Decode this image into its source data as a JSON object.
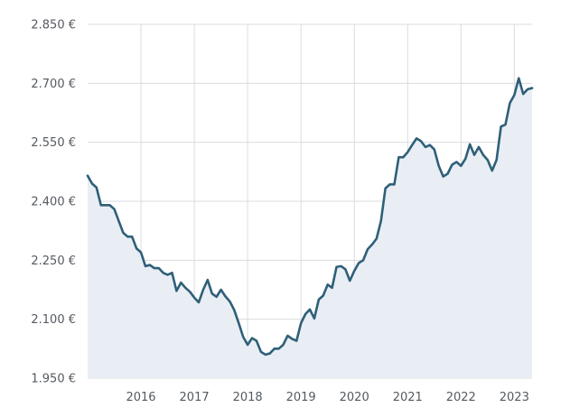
{
  "chart_data": {
    "type": "area",
    "title": "",
    "xlabel": "",
    "ylabel": "",
    "grid": true,
    "legend": "none",
    "ylim": [
      1950,
      2850
    ],
    "xlim": [
      "2015-01",
      "2023-05"
    ],
    "y_ticks": [
      1950,
      2100,
      2250,
      2400,
      2550,
      2700,
      2850
    ],
    "y_tick_labels": [
      "1.950 €",
      "2.100 €",
      "2.250 €",
      "2.400 €",
      "2.550 €",
      "2.700 €",
      "2.850 €"
    ],
    "x_ticks": [
      "2016-01",
      "2017-01",
      "2018-01",
      "2019-01",
      "2020-01",
      "2021-01",
      "2022-01",
      "2023-01"
    ],
    "x_tick_labels": [
      "2016",
      "2017",
      "2018",
      "2019",
      "2020",
      "2021",
      "2022",
      "2023"
    ],
    "colors": {
      "line": "#2f5f79",
      "fill": "#e9eef4",
      "grid": "#d9dcdf",
      "text": "#555a60"
    },
    "series": [
      {
        "x": [
          "2015-01",
          "2015-02",
          "2015-03",
          "2015-04",
          "2015-05",
          "2015-06",
          "2015-07",
          "2015-08",
          "2015-09",
          "2015-10",
          "2015-11",
          "2015-12",
          "2016-01",
          "2016-02",
          "2016-03",
          "2016-04",
          "2016-05",
          "2016-06",
          "2016-07",
          "2016-08",
          "2016-09",
          "2016-10",
          "2016-11",
          "2016-12",
          "2017-01",
          "2017-02",
          "2017-03",
          "2017-04",
          "2017-05",
          "2017-06",
          "2017-07",
          "2017-08",
          "2017-09",
          "2017-10",
          "2017-11",
          "2017-12",
          "2018-01",
          "2018-02",
          "2018-03",
          "2018-04",
          "2018-05",
          "2018-06",
          "2018-07",
          "2018-08",
          "2018-09",
          "2018-10",
          "2018-11",
          "2018-12",
          "2019-01",
          "2019-02",
          "2019-03",
          "2019-04",
          "2019-05",
          "2019-06",
          "2019-07",
          "2019-08",
          "2019-09",
          "2019-10",
          "2019-11",
          "2019-12",
          "2020-01",
          "2020-02",
          "2020-03",
          "2020-04",
          "2020-05",
          "2020-06",
          "2020-07",
          "2020-08",
          "2020-09",
          "2020-10",
          "2020-11",
          "2020-12",
          "2021-01",
          "2021-02",
          "2021-03",
          "2021-04",
          "2021-05",
          "2021-06",
          "2021-07",
          "2021-08",
          "2021-09",
          "2021-10",
          "2021-11",
          "2021-12",
          "2022-01",
          "2022-02",
          "2022-03",
          "2022-04",
          "2022-05",
          "2022-06",
          "2022-07",
          "2022-08",
          "2022-09",
          "2022-10",
          "2022-11",
          "2022-12",
          "2023-01",
          "2023-02",
          "2023-03",
          "2023-04",
          "2023-05"
        ],
        "y": [
          2465,
          2445,
          2435,
          2390,
          2390,
          2390,
          2380,
          2350,
          2320,
          2310,
          2310,
          2280,
          2270,
          2235,
          2238,
          2230,
          2230,
          2218,
          2213,
          2218,
          2172,
          2193,
          2180,
          2170,
          2155,
          2143,
          2175,
          2200,
          2165,
          2157,
          2175,
          2158,
          2145,
          2123,
          2090,
          2055,
          2035,
          2052,
          2045,
          2017,
          2010,
          2013,
          2025,
          2025,
          2035,
          2058,
          2050,
          2045,
          2090,
          2113,
          2125,
          2102,
          2150,
          2160,
          2188,
          2180,
          2233,
          2235,
          2227,
          2198,
          2223,
          2243,
          2250,
          2278,
          2290,
          2305,
          2350,
          2433,
          2443,
          2443,
          2512,
          2512,
          2525,
          2543,
          2560,
          2553,
          2538,
          2543,
          2532,
          2490,
          2463,
          2470,
          2493,
          2500,
          2490,
          2508,
          2545,
          2518,
          2538,
          2518,
          2505,
          2478,
          2505,
          2590,
          2595,
          2650,
          2670,
          2713,
          2673,
          2685,
          2688
        ]
      }
    ]
  }
}
